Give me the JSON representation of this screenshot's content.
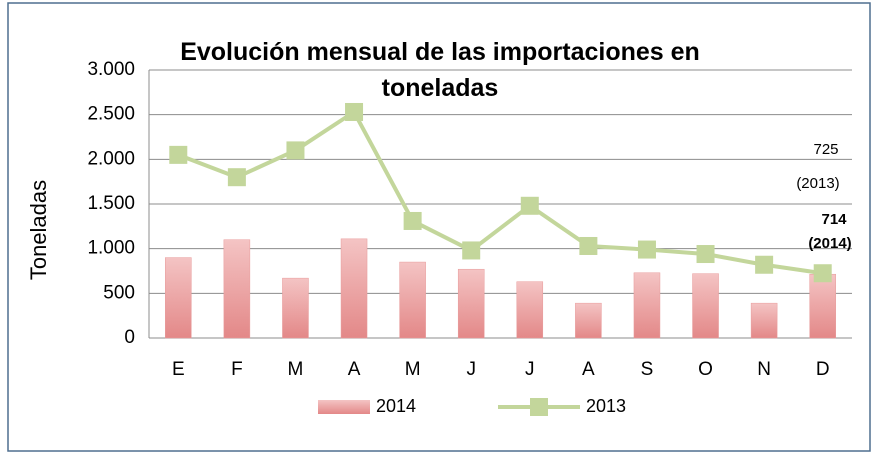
{
  "chart_data": {
    "type": "bar_line",
    "title": "Evolución mensual de las importaciones en toneladas",
    "y_label": "Toneladas",
    "categories": [
      "E",
      "F",
      "M",
      "A",
      "M",
      "J",
      "J",
      "A",
      "S",
      "O",
      "N",
      "D"
    ],
    "series": [
      {
        "name": "2014",
        "type": "bar",
        "color": "#e89a9a",
        "values": [
          900,
          1100,
          670,
          1110,
          850,
          770,
          630,
          390,
          730,
          720,
          390,
          714
        ]
      },
      {
        "name": "2013",
        "type": "line",
        "color": "#c3d69b",
        "values": [
          2050,
          1800,
          2100,
          2530,
          1310,
          980,
          1480,
          1030,
          990,
          940,
          820,
          725
        ]
      }
    ],
    "ylim": [
      0,
      3000
    ],
    "yticks": [
      0,
      500,
      {
        "value": 1000,
        "label": "1.000"
      },
      {
        "value": 1500,
        "label": "1.500"
      },
      {
        "value": 2000,
        "label": "2.000"
      },
      {
        "value": 2500,
        "label": "2.500"
      },
      {
        "value": 3000,
        "label": "3.000"
      }
    ],
    "grid": true,
    "legend": "bottom",
    "annotations": [
      "725",
      "(2013)",
      "714",
      "(2014)"
    ]
  }
}
